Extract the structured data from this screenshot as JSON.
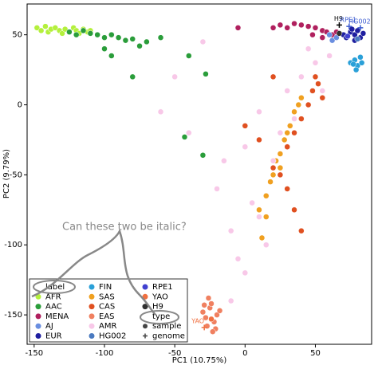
{
  "chart_data": {
    "type": "scatter",
    "xlabel": "PC1 (10.75%)",
    "ylabel": "PC2 (9.79%)",
    "xlim": [
      -155,
      90
    ],
    "ylim": [
      -171,
      72
    ],
    "xticks": [
      -150,
      -100,
      -50,
      0,
      50
    ],
    "yticks": [
      -150,
      -100,
      -50,
      0,
      50
    ],
    "legend_corner": "lower left",
    "legend_title": "label",
    "series": [
      {
        "name": "AFR",
        "color": "#b4f03c",
        "x": [
          -148,
          -145,
          -142,
          -140,
          -138,
          -135,
          -132,
          -130,
          -128,
          -125,
          -122,
          -120,
          -118,
          -115,
          -112,
          -110
        ],
        "y": [
          55,
          53,
          56,
          52,
          54,
          55,
          53,
          51,
          54,
          52,
          55,
          53,
          51,
          54,
          52,
          53
        ]
      },
      {
        "name": "AAC",
        "color": "#2a9d3a",
        "x": [
          -125,
          -120,
          -115,
          -110,
          -105,
          -100,
          -95,
          -90,
          -85,
          -80,
          -70,
          -60,
          -100,
          -95,
          -80,
          -30,
          -43,
          -28,
          -40,
          -75
        ],
        "y": [
          52,
          50,
          53,
          51,
          50,
          48,
          50,
          48,
          46,
          47,
          45,
          48,
          40,
          35,
          20,
          -36,
          -23,
          22,
          35,
          42
        ]
      },
      {
        "name": "MENA",
        "color": "#b0205e",
        "x": [
          25,
          30,
          35,
          40,
          45,
          50,
          55,
          58,
          62,
          65,
          70,
          20,
          -5,
          48,
          55
        ],
        "y": [
          57,
          55,
          58,
          57,
          56,
          55,
          53,
          52,
          50,
          52,
          50,
          55,
          55,
          50,
          48
        ]
      },
      {
        "name": "AJ",
        "color": "#6a8ee0",
        "x": [
          60,
          62,
          65
        ],
        "y": [
          50,
          46,
          48
        ]
      },
      {
        "name": "EUR",
        "color": "#1f1fa0",
        "x": [
          70,
          72,
          75,
          78,
          80,
          82,
          84,
          78,
          76
        ],
        "y": [
          50,
          48,
          52,
          50,
          53,
          48,
          51,
          46,
          54
        ]
      },
      {
        "name": "FIN",
        "color": "#2aa0d8",
        "x": [
          75,
          78,
          80,
          82,
          79,
          77,
          83
        ],
        "y": [
          30,
          32,
          28,
          34,
          25,
          29,
          30
        ]
      },
      {
        "name": "SAS",
        "color": "#f0a020",
        "x": [
          10,
          15,
          18,
          20,
          22,
          25,
          28,
          30,
          32,
          35,
          38,
          40,
          15,
          12,
          25
        ],
        "y": [
          -75,
          -65,
          -55,
          -50,
          -40,
          -35,
          -25,
          -20,
          -15,
          -5,
          0,
          5,
          -80,
          -95,
          -45
        ]
      },
      {
        "name": "CAS",
        "color": "#e05020",
        "x": [
          20,
          25,
          30,
          35,
          40,
          45,
          48,
          50,
          52,
          55,
          30,
          35,
          40,
          10,
          20,
          0
        ],
        "y": [
          -45,
          -50,
          -30,
          -20,
          -10,
          0,
          10,
          20,
          15,
          5,
          -60,
          -75,
          -90,
          -25,
          20,
          -15
        ]
      },
      {
        "name": "EAS",
        "color": "#f08060",
        "x": [
          -30,
          -28,
          -25,
          -22,
          -20,
          -27,
          -24,
          -21,
          -18,
          -26,
          -23,
          -29
        ],
        "y": [
          -148,
          -152,
          -145,
          -155,
          -150,
          -158,
          -142,
          -160,
          -147,
          -138,
          -162,
          -143
        ]
      },
      {
        "name": "AMR",
        "color": "#f8c8e8",
        "x": [
          -60,
          -40,
          -20,
          -10,
          -5,
          0,
          10,
          20,
          30,
          40,
          50,
          60,
          45,
          -50,
          -30,
          0,
          5,
          15,
          -10,
          35,
          55,
          25,
          -15,
          10
        ],
        "y": [
          -5,
          -20,
          -60,
          -90,
          -110,
          -120,
          -80,
          -40,
          10,
          20,
          30,
          35,
          40,
          20,
          45,
          -30,
          -70,
          -100,
          -140,
          -10,
          10,
          -20,
          -40,
          -5
        ]
      },
      {
        "name": "HG002",
        "color": "#4a7ac0",
        "x": [
          80
        ],
        "y": [
          47
        ]
      },
      {
        "name": "RPE1",
        "color": "#4040d0",
        "x": [
          73
        ],
        "y": [
          49
        ]
      },
      {
        "name": "YAO",
        "color": "#f07040",
        "x": [
          -24
        ],
        "y": [
          -153
        ]
      },
      {
        "name": "H9",
        "color": "#303030",
        "x": [
          67
        ],
        "y": [
          51
        ]
      }
    ],
    "type_legend": {
      "title": "type",
      "entries": [
        "sample",
        "genome"
      ]
    },
    "genomes": [
      {
        "label": "H9",
        "color": "#000000",
        "x": 67,
        "y": 57
      },
      {
        "label": "RPE1",
        "color": "#3a5ad0",
        "x": 74,
        "y": 56
      },
      {
        "label": "HG002",
        "color": "#3a5ad0",
        "x": 82,
        "y": 55
      },
      {
        "label": "YAO",
        "color": "#f07040",
        "x": -29,
        "y": -159
      }
    ],
    "annotation": "Can these two be italic?"
  }
}
